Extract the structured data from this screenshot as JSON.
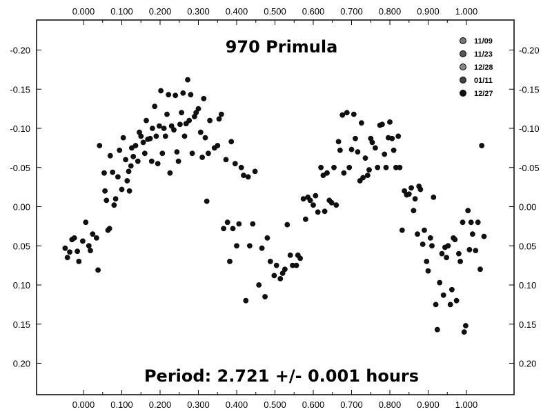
{
  "chart_data": {
    "type": "scatter",
    "title": "970 Primula",
    "subtitle": "Period:  2.721 +/- 0.001 hours",
    "xlim": [
      -0.12,
      1.12
    ],
    "ylim": [
      0.24,
      -0.24
    ],
    "y_inverted": true,
    "grid": false,
    "legend_position": "top-right",
    "x_ticks": [
      "0.000",
      "0.100",
      "0.200",
      "0.300",
      "0.400",
      "0.500",
      "0.600",
      "0.700",
      "0.800",
      "0.900",
      "1.000"
    ],
    "x_tick_values": [
      0.0,
      0.1,
      0.2,
      0.3,
      0.4,
      0.5,
      0.6,
      0.7,
      0.8,
      0.9,
      1.0
    ],
    "y_ticks": [
      "-0.20",
      "-0.15",
      "-0.10",
      "-0.05",
      "0.00",
      "0.05",
      "0.10",
      "0.15",
      "0.20"
    ],
    "y_tick_values": [
      -0.2,
      -0.15,
      -0.1,
      -0.05,
      0.0,
      0.05,
      0.1,
      0.15,
      0.2
    ],
    "series": [
      {
        "name": "11/09",
        "color": "#777777",
        "points": []
      },
      {
        "name": "11/23",
        "color": "#555555",
        "points": []
      },
      {
        "name": "12/28",
        "color": "#888888",
        "points": []
      },
      {
        "name": "01/11",
        "color": "#444444",
        "points": []
      },
      {
        "name": "12/27",
        "color": "#111111",
        "points": [
          [
            -0.048,
            0.053
          ],
          [
            -0.042,
            0.065
          ],
          [
            -0.036,
            0.058
          ],
          [
            -0.03,
            0.042
          ],
          [
            -0.024,
            0.04
          ],
          [
            -0.016,
            0.057
          ],
          [
            -0.012,
            0.07
          ],
          [
            -0.002,
            0.044
          ],
          [
            0.006,
            0.02
          ],
          [
            0.014,
            0.05
          ],
          [
            0.018,
            0.056
          ],
          [
            0.024,
            0.035
          ],
          [
            0.034,
            0.04
          ],
          [
            0.038,
            0.081
          ],
          [
            0.042,
            -0.078
          ],
          [
            0.054,
            -0.043
          ],
          [
            0.056,
            -0.02
          ],
          [
            0.06,
            -0.008
          ],
          [
            0.064,
            0.03
          ],
          [
            0.068,
            0.028
          ],
          [
            0.07,
            -0.065
          ],
          [
            0.076,
            -0.044
          ],
          [
            0.08,
            -0.002
          ],
          [
            0.084,
            -0.01
          ],
          [
            0.09,
            -0.038
          ],
          [
            0.094,
            -0.072
          ],
          [
            0.1,
            -0.022
          ],
          [
            0.104,
            -0.088
          ],
          [
            0.11,
            -0.06
          ],
          [
            0.114,
            -0.033
          ],
          [
            0.118,
            -0.045
          ],
          [
            0.12,
            -0.02
          ],
          [
            0.124,
            -0.052
          ],
          [
            0.126,
            -0.075
          ],
          [
            0.13,
            -0.064
          ],
          [
            0.136,
            -0.078
          ],
          [
            0.142,
            -0.058
          ],
          [
            0.146,
            -0.095
          ],
          [
            0.15,
            -0.09
          ],
          [
            0.156,
            -0.082
          ],
          [
            0.16,
            -0.068
          ],
          [
            0.164,
            -0.11
          ],
          [
            0.168,
            -0.086
          ],
          [
            0.174,
            -0.087
          ],
          [
            0.178,
            -0.058
          ],
          [
            0.18,
            -0.1
          ],
          [
            0.186,
            -0.128
          ],
          [
            0.19,
            -0.09
          ],
          [
            0.194,
            -0.055
          ],
          [
            0.198,
            -0.103
          ],
          [
            0.202,
            -0.148
          ],
          [
            0.206,
            -0.068
          ],
          [
            0.21,
            -0.1
          ],
          [
            0.214,
            -0.09
          ],
          [
            0.218,
            -0.118
          ],
          [
            0.222,
            -0.143
          ],
          [
            0.226,
            -0.043
          ],
          [
            0.23,
            -0.103
          ],
          [
            0.236,
            -0.098
          ],
          [
            0.24,
            -0.142
          ],
          [
            0.244,
            -0.07
          ],
          [
            0.248,
            -0.058
          ],
          [
            0.252,
            -0.105
          ],
          [
            0.256,
            -0.12
          ],
          [
            0.26,
            -0.145
          ],
          [
            0.264,
            -0.09
          ],
          [
            0.268,
            -0.106
          ],
          [
            0.272,
            -0.162
          ],
          [
            0.276,
            -0.11
          ],
          [
            0.28,
            -0.143
          ],
          [
            0.284,
            -0.068
          ],
          [
            0.29,
            -0.115
          ],
          [
            0.294,
            -0.12
          ],
          [
            0.3,
            -0.125
          ],
          [
            0.306,
            -0.095
          ],
          [
            0.31,
            -0.063
          ],
          [
            0.314,
            -0.138
          ],
          [
            0.318,
            -0.088
          ],
          [
            0.322,
            -0.007
          ],
          [
            0.326,
            -0.068
          ],
          [
            0.33,
            -0.11
          ],
          [
            0.342,
            -0.075
          ],
          [
            0.35,
            -0.078
          ],
          [
            0.354,
            -0.112
          ],
          [
            0.36,
            -0.118
          ],
          [
            0.366,
            0.028
          ],
          [
            0.372,
            -0.06
          ],
          [
            0.376,
            0.02
          ],
          [
            0.382,
            0.07
          ],
          [
            0.386,
            -0.083
          ],
          [
            0.39,
            0.028
          ],
          [
            0.396,
            -0.055
          ],
          [
            0.4,
            0.05
          ],
          [
            0.406,
            0.022
          ],
          [
            0.412,
            -0.05
          ],
          [
            0.418,
            -0.04
          ],
          [
            0.424,
            0.12
          ],
          [
            0.43,
            -0.038
          ],
          [
            0.434,
            0.05
          ],
          [
            0.442,
            0.022
          ],
          [
            0.448,
            -0.045
          ],
          [
            0.458,
            0.1
          ],
          [
            0.466,
            0.053
          ],
          [
            0.474,
            0.115
          ],
          [
            0.48,
            0.04
          ],
          [
            0.488,
            0.07
          ],
          [
            0.498,
            0.088
          ],
          [
            0.504,
            0.075
          ],
          [
            0.514,
            0.092
          ],
          [
            0.52,
            0.085
          ],
          [
            0.526,
            0.08
          ],
          [
            0.532,
            0.023
          ],
          [
            0.54,
            0.062
          ],
          [
            0.546,
            0.075
          ],
          [
            0.556,
            0.075
          ],
          [
            0.56,
            0.062
          ],
          [
            0.566,
            0.066
          ],
          [
            0.574,
            -0.01
          ],
          [
            0.58,
            0.016
          ],
          [
            0.586,
            -0.012
          ],
          [
            0.592,
            -0.008
          ],
          [
            0.6,
            -0.002
          ],
          [
            0.606,
            -0.014
          ],
          [
            0.612,
            0.007
          ],
          [
            0.62,
            -0.05
          ],
          [
            0.626,
            -0.04
          ],
          [
            0.63,
            0.006
          ],
          [
            0.636,
            -0.043
          ],
          [
            0.642,
            -0.008
          ],
          [
            0.648,
            -0.005
          ],
          [
            0.654,
            -0.05
          ],
          [
            0.66,
            -0.002
          ],
          [
            0.666,
            -0.083
          ],
          [
            0.67,
            -0.072
          ],
          [
            0.676,
            -0.117
          ],
          [
            0.68,
            -0.043
          ],
          [
            0.688,
            -0.12
          ],
          [
            0.694,
            -0.05
          ],
          [
            0.7,
            -0.073
          ],
          [
            0.706,
            -0.118
          ],
          [
            0.71,
            -0.087
          ],
          [
            0.716,
            -0.07
          ],
          [
            0.722,
            -0.033
          ],
          [
            0.726,
            -0.107
          ],
          [
            0.73,
            -0.037
          ],
          [
            0.736,
            -0.062
          ],
          [
            0.742,
            -0.04
          ],
          [
            0.746,
            -0.047
          ],
          [
            0.75,
            -0.087
          ],
          [
            0.754,
            -0.082
          ],
          [
            0.762,
            -0.075
          ],
          [
            0.768,
            -0.05
          ],
          [
            0.774,
            -0.104
          ],
          [
            0.78,
            -0.105
          ],
          [
            0.786,
            -0.067
          ],
          [
            0.79,
            -0.05
          ],
          [
            0.796,
            -0.088
          ],
          [
            0.8,
            -0.108
          ],
          [
            0.806,
            -0.087
          ],
          [
            0.81,
            -0.072
          ],
          [
            0.816,
            -0.05
          ],
          [
            0.822,
            -0.09
          ],
          [
            0.826,
            -0.05
          ],
          [
            0.832,
            0.03
          ],
          [
            0.838,
            -0.02
          ],
          [
            0.844,
            -0.015
          ],
          [
            0.85,
            -0.016
          ],
          [
            0.856,
            -0.024
          ],
          [
            0.862,
            0.005
          ],
          [
            0.866,
            -0.01
          ],
          [
            0.872,
            0.035
          ],
          [
            0.876,
            -0.026
          ],
          [
            0.88,
            -0.022
          ],
          [
            0.886,
            0.048
          ],
          [
            0.89,
            0.03
          ],
          [
            0.896,
            0.07
          ],
          [
            0.9,
            0.082
          ],
          [
            0.906,
            0.04
          ],
          [
            0.91,
            0.05
          ],
          [
            0.914,
            -0.012
          ],
          [
            0.92,
            0.125
          ],
          [
            0.924,
            0.157
          ],
          [
            0.93,
            0.097
          ],
          [
            0.936,
            0.06
          ],
          [
            0.94,
            0.113
          ],
          [
            0.944,
            0.052
          ],
          [
            0.948,
            0.065
          ],
          [
            0.952,
            0.05
          ],
          [
            0.958,
            0.125
          ],
          [
            0.962,
            0.106
          ],
          [
            0.966,
            0.04
          ],
          [
            0.97,
            0.042
          ],
          [
            0.974,
            0.12
          ],
          [
            0.98,
            0.06
          ],
          [
            0.984,
            0.07
          ],
          [
            0.99,
            0.02
          ],
          [
            0.994,
            0.16
          ],
          [
            0.998,
            0.152
          ],
          [
            1.004,
            0.005
          ],
          [
            1.008,
            0.055
          ],
          [
            1.012,
            0.02
          ],
          [
            1.016,
            0.035
          ],
          [
            1.024,
            0.056
          ],
          [
            1.03,
            0.02
          ],
          [
            1.036,
            0.08
          ],
          [
            1.04,
            -0.078
          ],
          [
            1.046,
            0.038
          ]
        ]
      }
    ]
  }
}
